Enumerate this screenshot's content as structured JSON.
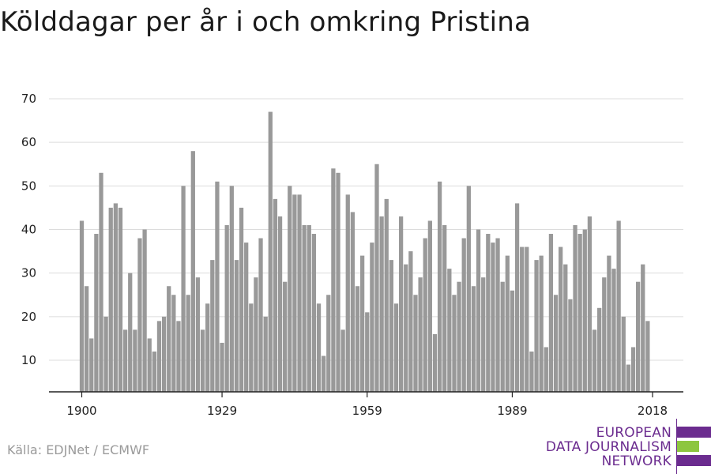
{
  "chart_data": {
    "type": "bar",
    "title": "Kölddagar per år i och omkring Pristina",
    "xlabel": "",
    "ylabel": "",
    "x_start": 1900,
    "x_end": 2018,
    "x_ticks": [
      1900,
      1929,
      1959,
      1989,
      2018
    ],
    "y_ticks": [
      10,
      20,
      30,
      40,
      50,
      60,
      70
    ],
    "ylim": [
      3,
      73
    ],
    "grid": true,
    "bar_color": "#999999",
    "values": [
      42,
      27,
      15,
      39,
      53,
      20,
      45,
      46,
      45,
      17,
      30,
      17,
      38,
      40,
      15,
      12,
      19,
      20,
      27,
      25,
      19,
      50,
      25,
      58,
      29,
      17,
      23,
      33,
      51,
      14,
      41,
      50,
      33,
      45,
      37,
      23,
      29,
      38,
      20,
      67,
      47,
      43,
      28,
      50,
      48,
      48,
      41,
      41,
      39,
      23,
      11,
      25,
      54,
      53,
      17,
      48,
      44,
      27,
      34,
      21,
      37,
      55,
      43,
      47,
      33,
      23,
      43,
      32,
      35,
      25,
      29,
      38,
      42,
      16,
      51,
      41,
      31,
      25,
      28,
      38,
      50,
      27,
      40,
      29,
      39,
      37,
      38,
      28,
      34,
      26,
      46,
      36,
      36,
      12,
      33,
      34,
      13,
      39,
      25,
      36,
      32,
      24,
      41,
      39,
      40,
      43,
      17,
      22,
      29,
      34,
      31,
      42,
      20,
      9,
      13,
      28,
      32,
      19
    ]
  },
  "source": "Källa: EDJNet / ECMWF",
  "logo": {
    "line1": "EUROPEAN",
    "line2": "DATA JOURNALISM",
    "line3": "NETWORK",
    "color_purple": "#6b2c8f",
    "color_green": "#8dc63f"
  }
}
